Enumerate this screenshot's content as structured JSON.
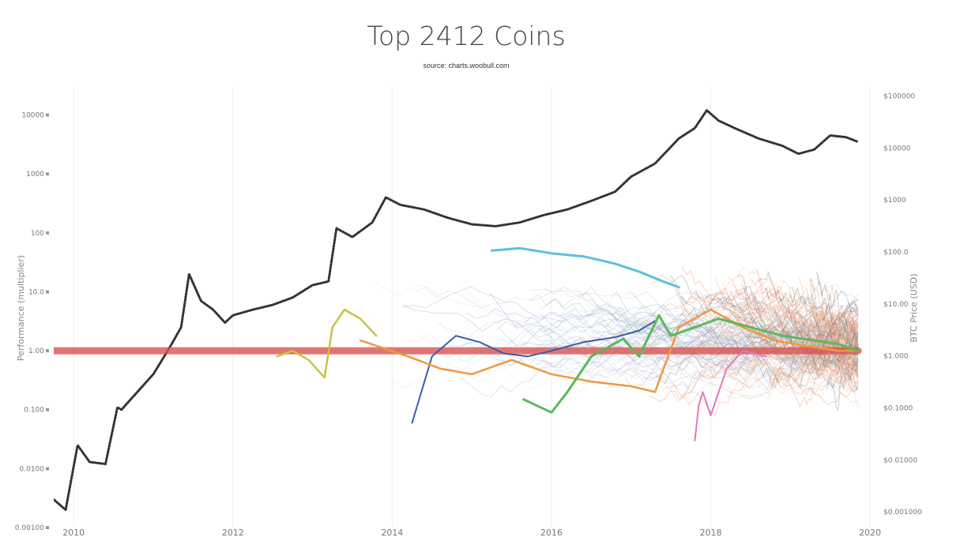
{
  "chart_data": {
    "type": "line",
    "title": "Top 2412 Coins",
    "subtitle": "source: charts.woobull.com",
    "ylabel": "Performance (multiplier)",
    "y2label": "BTC Price (USD)",
    "yscale": "log",
    "y2scale": "log",
    "xlim": [
      2009.75,
      2020
    ],
    "ylim": [
      0.001,
      30000
    ],
    "y2lim": [
      0.0005,
      150000
    ],
    "x_ticks": [
      "2010",
      "2012",
      "2014",
      "2016",
      "2018",
      "2020"
    ],
    "y_ticks": [
      "10000",
      "1000",
      "100",
      "10.0",
      "1.00",
      "0.100",
      "0.0100",
      "0.00100"
    ],
    "y2_ticks": [
      "$100000",
      "$10000",
      "$1000",
      "$100.0",
      "$10.00",
      "$1.000",
      "$0.1000",
      "$0.01000",
      "$0.001000"
    ],
    "grid": true,
    "legend": "none",
    "colors": {
      "btc": "#333333",
      "baseline": "#d9534f",
      "tick_text": "#777777",
      "grid": "#eeeeee"
    },
    "series": [
      {
        "x": [
          2009.75,
          2009.9,
          2010.05,
          2010.2,
          2010.4,
          2010.55,
          2010.6,
          2010.8,
          2011.0,
          2011.2,
          2011.35,
          2011.45,
          2011.6,
          2011.75,
          2011.9,
          2012.0,
          2012.25,
          2012.5,
          2012.75,
          2013.0,
          2013.2,
          2013.3,
          2013.5,
          2013.75,
          2013.92,
          2014.1,
          2014.4,
          2014.7,
          2015.0,
          2015.3,
          2015.6,
          2015.9,
          2016.2,
          2016.5,
          2016.8,
          2017.0,
          2017.3,
          2017.6,
          2017.8,
          2017.95,
          2018.1,
          2018.3,
          2018.6,
          2018.9,
          2019.1,
          2019.3,
          2019.5,
          2019.7,
          2019.85
        ],
        "values": [
          0.003,
          0.002,
          0.025,
          0.013,
          0.012,
          0.11,
          0.1,
          0.2,
          0.4,
          1.1,
          2.5,
          20,
          7,
          5,
          3,
          4,
          5,
          6,
          8,
          13,
          15,
          120,
          85,
          150,
          400,
          300,
          250,
          180,
          140,
          130,
          150,
          200,
          250,
          350,
          500,
          900,
          1500,
          4000,
          6000,
          12000,
          8000,
          6000,
          4000,
          3000,
          2200,
          2600,
          4500,
          4200,
          3500
        ]
      },
      {
        "x": [
          2009.75,
          2019.85
        ],
        "values": [
          1,
          1
        ]
      },
      {
        "x": [
          2015.25,
          2015.6,
          2016.0,
          2016.4,
          2016.8,
          2017.1,
          2017.4,
          2017.6
        ],
        "values": [
          50,
          55,
          45,
          40,
          30,
          22,
          15,
          12
        ]
      },
      {
        "x": [
          2012.55,
          2012.75,
          2012.95,
          2013.15,
          2013.25,
          2013.4,
          2013.6,
          2013.8
        ],
        "values": [
          0.8,
          1.0,
          0.7,
          0.35,
          2.5,
          5,
          3.5,
          1.8
        ]
      },
      {
        "x": [
          2014.25,
          2014.5,
          2014.8,
          2015.1,
          2015.4,
          2015.7,
          2016.0,
          2016.4,
          2016.8,
          2017.1,
          2017.3
        ],
        "values": [
          0.06,
          0.8,
          1.8,
          1.4,
          0.9,
          0.8,
          1.0,
          1.4,
          1.7,
          2.2,
          3.2
        ]
      },
      {
        "x": [
          2013.6,
          2013.9,
          2014.2,
          2014.6,
          2015.0,
          2015.5,
          2016.0,
          2016.5,
          2017.0,
          2017.3,
          2017.6,
          2018.0,
          2018.4,
          2018.8,
          2019.2,
          2019.6,
          2019.85
        ],
        "values": [
          1.5,
          1.1,
          0.8,
          0.5,
          0.4,
          0.7,
          0.4,
          0.3,
          0.25,
          0.2,
          2.5,
          5,
          2.5,
          1.5,
          1.2,
          1.0,
          1.0
        ]
      },
      {
        "x": [
          2015.65,
          2015.8,
          2016.0,
          2016.2,
          2016.5,
          2016.9,
          2017.1,
          2017.35,
          2017.5,
          2017.8,
          2018.1,
          2018.5,
          2018.9,
          2019.3,
          2019.6,
          2019.85
        ],
        "values": [
          0.15,
          0.12,
          0.09,
          0.2,
          0.8,
          1.6,
          0.8,
          4,
          1.8,
          2.5,
          3.5,
          2.5,
          1.8,
          1.5,
          1.3,
          1.0
        ]
      },
      {
        "x": [
          2017.8,
          2017.85,
          2017.9,
          2018.0,
          2018.2,
          2018.4,
          2018.7
        ],
        "values": [
          0.03,
          0.12,
          0.2,
          0.08,
          0.5,
          1.0,
          0.8
        ]
      }
    ]
  }
}
